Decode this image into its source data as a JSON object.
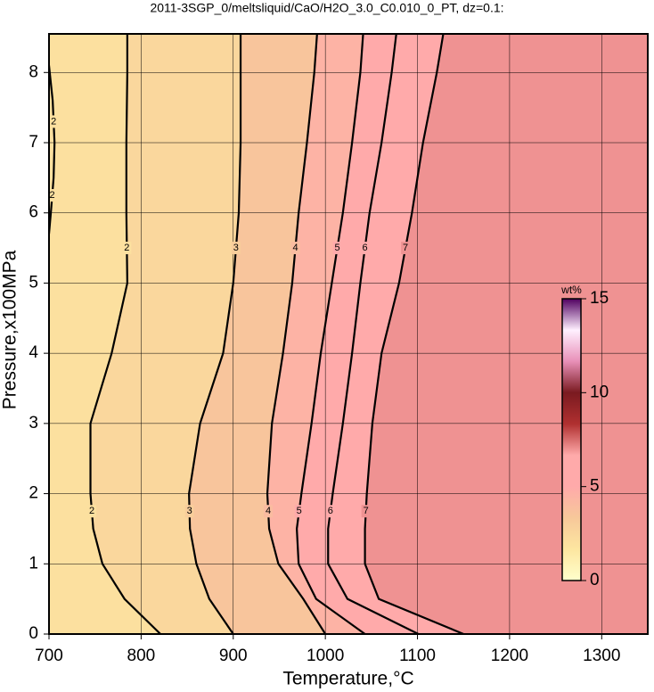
{
  "chart_data": {
    "type": "contour",
    "title": "2011-3SGP_0/meltsliquid/CaO/H2O_3.0_C0.010_0_PT, dz=0.1:",
    "xlabel": "Temperature,°C",
    "ylabel": "Pressure,x100MPa",
    "xlim": [
      700,
      1350
    ],
    "ylim": [
      0,
      8.55
    ],
    "xticks": [
      700,
      800,
      900,
      1000,
      1100,
      1200,
      1300
    ],
    "yticks": [
      0,
      1,
      2,
      3,
      4,
      5,
      6,
      7,
      8
    ],
    "grid": true,
    "contours": [
      {
        "level": 2,
        "x": [
          821,
          782,
          758,
          748,
          745,
          745,
          768,
          785,
          784,
          784,
          785,
          785
        ],
        "y": [
          0,
          0.5,
          1,
          1.5,
          2,
          3,
          4,
          5,
          6,
          7,
          8,
          8.55
        ]
      },
      {
        "level": 3,
        "x": [
          900,
          874,
          860,
          853,
          852,
          864,
          889,
          900,
          906,
          908,
          908,
          908
        ],
        "y": [
          0,
          0.5,
          1,
          1.5,
          2,
          3,
          4,
          5,
          6,
          7,
          8,
          8.55
        ]
      },
      {
        "level": 4,
        "x": [
          1000,
          976,
          949,
          939,
          937,
          942,
          954,
          964,
          971,
          980,
          988,
          991
        ],
        "y": [
          0,
          0.5,
          1,
          1.5,
          2,
          3,
          4,
          5,
          6,
          7,
          8,
          8.55
        ]
      },
      {
        "level": 5,
        "x": [
          1043,
          990,
          971,
          969,
          974,
          985,
          995,
          1007,
          1019,
          1029,
          1038,
          1041
        ],
        "y": [
          0,
          0.5,
          1,
          1.5,
          2,
          3,
          4,
          5,
          6,
          7,
          8,
          8.55
        ]
      },
      {
        "level": 6,
        "x": [
          1101,
          1024,
          1003,
          1003,
          1008,
          1019,
          1029,
          1038,
          1048,
          1061,
          1072,
          1077
        ],
        "y": [
          0,
          0.5,
          1,
          1.5,
          2,
          3,
          4,
          5,
          6,
          7,
          8,
          8.55
        ]
      },
      {
        "level": 7,
        "x": [
          1150,
          1058,
          1043,
          1043,
          1045,
          1051,
          1061,
          1080,
          1094,
          1106,
          1121,
          1128
        ],
        "y": [
          0,
          0.5,
          1,
          1.5,
          2,
          3,
          4,
          5,
          6,
          7,
          8,
          8.55
        ]
      }
    ],
    "side_contour": {
      "level": 2,
      "x": [
        700,
        704,
        706,
        705,
        702,
        700
      ],
      "y": [
        8.1,
        7.6,
        7.0,
        6.5,
        6.0,
        5.7
      ]
    },
    "colorbar": {
      "label": "wt%",
      "lim": [
        0,
        15
      ],
      "ticks": [
        0,
        5,
        10,
        15
      ],
      "colors": [
        "#ffffcc",
        "#fde6a0",
        "#f7c89a",
        "#ffaaaa",
        "#ffaaaa",
        "#b03030",
        "#7a1a20",
        "#e890b8",
        "#fff0ff",
        "#500060"
      ]
    }
  }
}
